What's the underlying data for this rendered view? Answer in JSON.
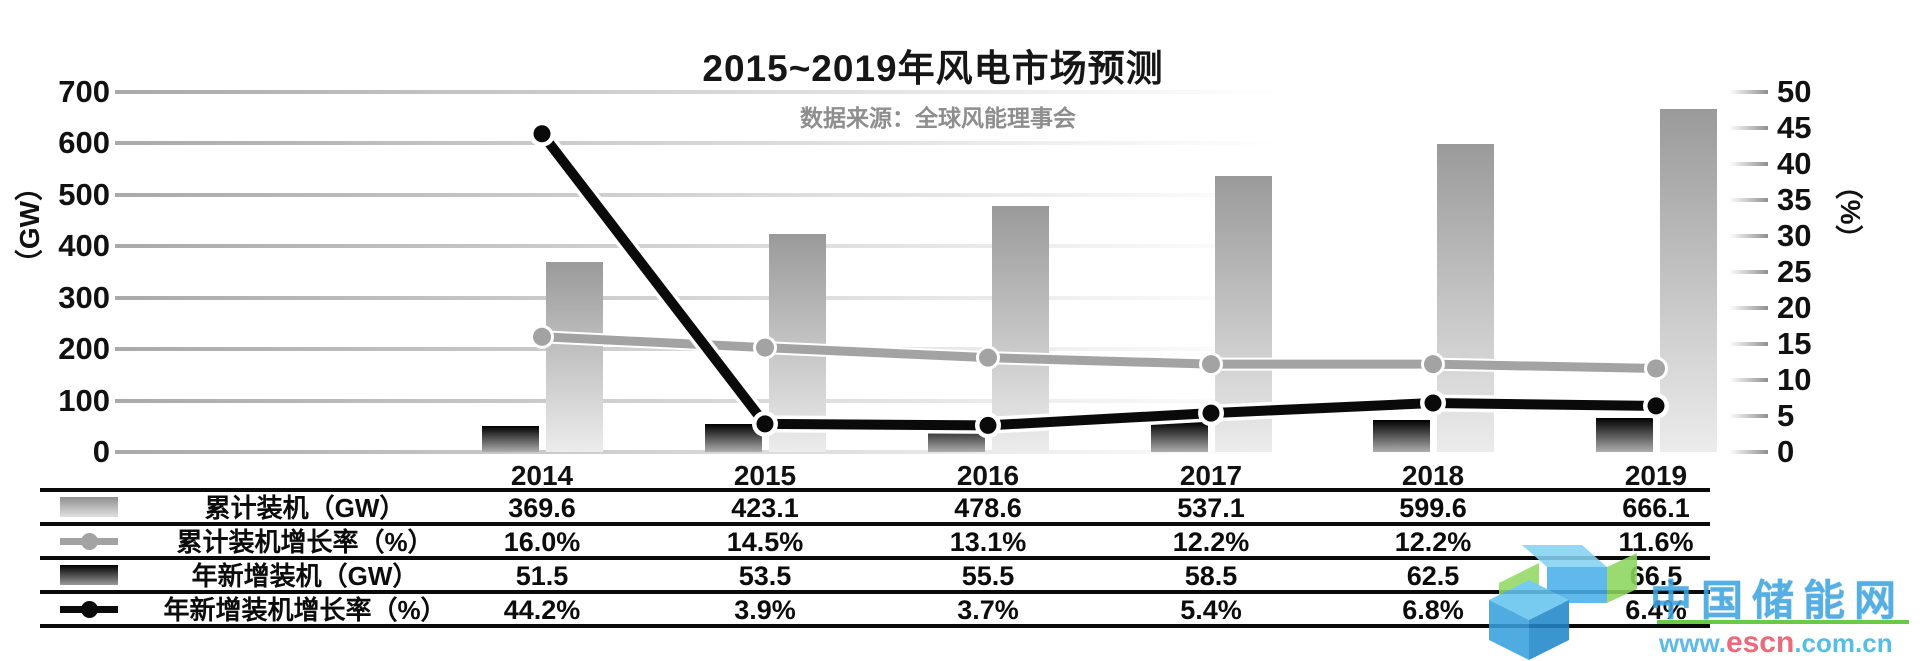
{
  "chart_data": {
    "type": "combo-bar-line",
    "title": "2015~2019年风电市场预测",
    "subtitle": "数据来源：全球风能理事会",
    "categories": [
      "2014",
      "2015",
      "2016",
      "2017",
      "2018",
      "2019"
    ],
    "left_axis": {
      "label": "（GW）",
      "min": 0,
      "max": 700,
      "step": 100,
      "ticks": [
        700,
        600,
        500,
        400,
        300,
        200,
        100,
        0
      ]
    },
    "right_axis": {
      "label": "（%）",
      "min": 0,
      "max": 50,
      "step": 5,
      "ticks": [
        50,
        45,
        40,
        35,
        30,
        25,
        20,
        15,
        10,
        5,
        0
      ]
    },
    "grid": "horizontal-fading",
    "legend_position": "table-left-column",
    "series": [
      {
        "name": "累计装机（GW）",
        "type": "bar",
        "axis": "left",
        "values": [
          369.6,
          423.1,
          478.6,
          537.1,
          599.6,
          666.1
        ],
        "color_top": "#9a9a9a",
        "color_bottom": "#ececec"
      },
      {
        "name": "累计装机增长率（%）",
        "type": "line",
        "axis": "right",
        "values": [
          16.0,
          14.5,
          13.1,
          12.2,
          12.2,
          11.6
        ],
        "color": "#a3a3a3"
      },
      {
        "name": "年新增装机（GW）",
        "type": "bar",
        "axis": "left",
        "values": [
          51.5,
          53.5,
          55.5,
          58.5,
          62.5,
          66.5
        ],
        "color_top": "#000000",
        "color_bottom": "#adadad"
      },
      {
        "name": "年新增装机增长率（%）",
        "type": "line",
        "axis": "right",
        "values": [
          44.2,
          3.9,
          3.7,
          5.4,
          6.8,
          6.4
        ],
        "color": "#0a0a0a"
      }
    ],
    "table": {
      "rows": [
        {
          "label": "累计装机（GW）",
          "swatch": "bar-gradient-gray",
          "values": [
            "369.6",
            "423.1",
            "478.6",
            "537.1",
            "599.6",
            "666.1"
          ]
        },
        {
          "label": "累计装机增长率（%）",
          "swatch": "line-dot-gray",
          "values": [
            "16.0%",
            "14.5%",
            "13.1%",
            "12.2%",
            "12.2%",
            "11.6%"
          ]
        },
        {
          "label": "年新增装机（GW）",
          "swatch": "bar-gradient-black",
          "values": [
            "51.5",
            "53.5",
            "55.5",
            "58.5",
            "62.5",
            "66.5"
          ]
        },
        {
          "label": "年新增装机增长率（%）",
          "swatch": "line-dot-black",
          "values": [
            "44.2%",
            "3.9%",
            "3.7%",
            "5.4%",
            "6.8%",
            "6.4%"
          ]
        }
      ]
    }
  },
  "watermark": {
    "site_name": "中国储能网",
    "url_prefix": "www.",
    "url_highlight": "escn",
    "url_suffix": ".com.cn",
    "colors": {
      "blue": "#3ea4e0",
      "green": "#56c32d",
      "red": "#e85668"
    }
  }
}
